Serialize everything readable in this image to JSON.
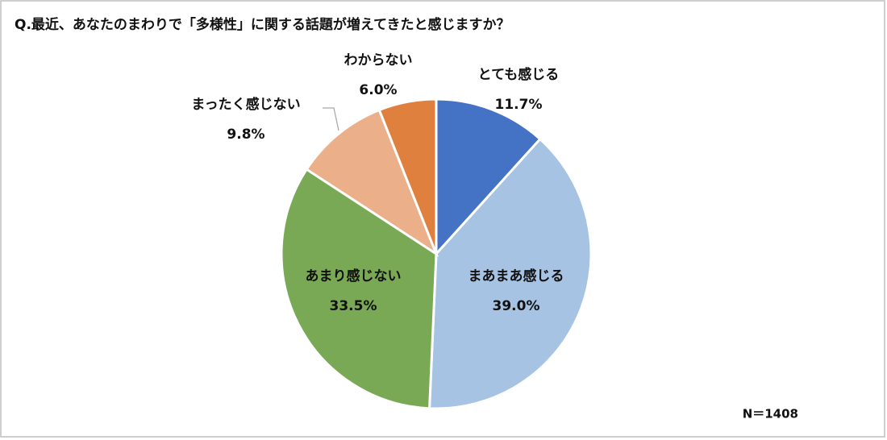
{
  "chart_data": {
    "type": "pie",
    "title": "Q.最近、あなたのまわりで「多様性」に関する話題が増えてきたと感じますか？",
    "categories": [
      "とても感じる",
      "まあまあ感じる",
      "あまり感じない",
      "まったく感じない",
      "わからない"
    ],
    "values": [
      11.7,
      39.0,
      33.5,
      9.8,
      6.0
    ],
    "value_labels": [
      "11.7%",
      "39.0%",
      "33.5%",
      "9.8%",
      "6.0%"
    ],
    "colors": [
      "#4472c4",
      "#a6c3e4",
      "#7aa955",
      "#ebb089",
      "#e0803f"
    ],
    "note": "N＝1408"
  }
}
